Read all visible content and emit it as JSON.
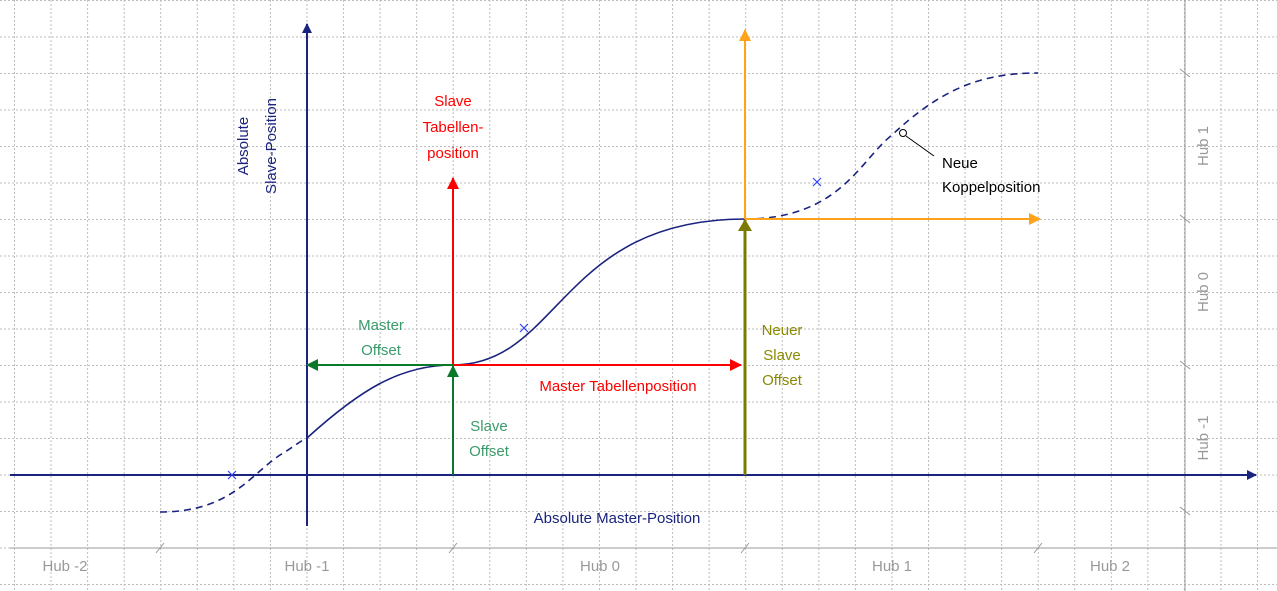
{
  "axes": {
    "master": "Absolute Master-Position",
    "slave": [
      "Absolute",
      "Slave-Position"
    ]
  },
  "hub_bottom": [
    "Hub -2",
    "Hub -1",
    "Hub 0",
    "Hub 1",
    "Hub 2"
  ],
  "hub_right": [
    "Hub 1",
    "Hub 0",
    "Hub -1"
  ],
  "labels": {
    "slave_table_position": [
      "Slave",
      "Tabellen-",
      "position"
    ],
    "master_offset": [
      "Master",
      "Offset"
    ],
    "master_table_position": "Master Tabellenposition",
    "slave_offset": [
      "Slave",
      "Offset"
    ],
    "new_slave_offset": [
      "Neuer",
      "Slave",
      "Offset"
    ],
    "new_coupling_position": [
      "Neue",
      "Koppelposition"
    ]
  }
}
